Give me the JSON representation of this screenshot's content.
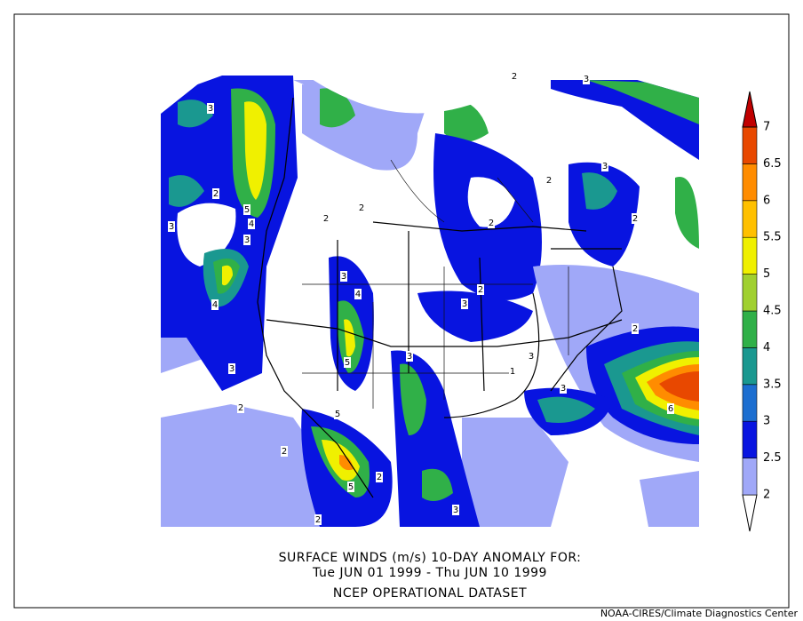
{
  "caption": {
    "line1": "SURFACE WINDS (m/s)   10-DAY ANOMALY FOR:",
    "line2": "Tue JUN 01 1999 - Thu JUN 10 1999",
    "line3": "NCEP OPERATIONAL DATASET"
  },
  "credit": "NOAA-CIRES/Climate Diagnostics Center",
  "colorbar": {
    "levels": [
      2,
      2.5,
      3,
      3.5,
      4,
      4.5,
      5,
      5.5,
      6,
      6.5,
      7
    ],
    "colors": [
      "#ffffff",
      "#a0a8f8",
      "#0814e0",
      "#1c6ed0",
      "#1a9890",
      "#30b048",
      "#a0d030",
      "#f0f000",
      "#ffc000",
      "#ff8c00",
      "#e84800",
      "#c00000"
    ]
  },
  "contour_labels": [
    3,
    2,
    5,
    4,
    3,
    3,
    4,
    3,
    3,
    4,
    5,
    3,
    3,
    2,
    2,
    2,
    3,
    3,
    2,
    3,
    6,
    5,
    5,
    2,
    3,
    2,
    2,
    2,
    2,
    2,
    2,
    2,
    3,
    1
  ]
}
